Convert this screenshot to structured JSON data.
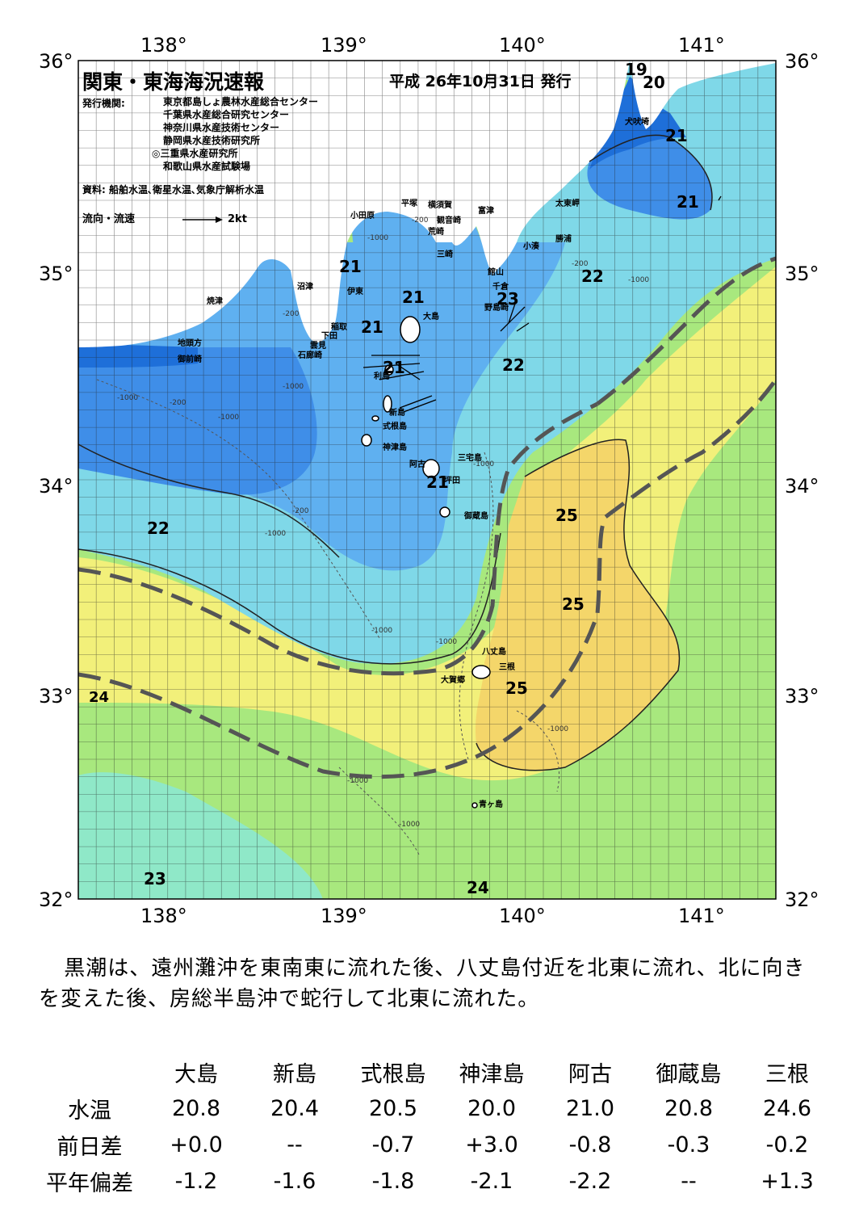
{
  "title": "関東・東海海況速報",
  "issued": "平成 26年10月31日 発行",
  "publisher_label": "発行機関:",
  "publishers": [
    "東京都島しょ農林水産総合センター",
    "千葉県水産総合研究センター",
    "神奈川県水産技術センター",
    "静岡県水産技術研究所",
    "◎三重県水産研究所",
    "和歌山県水産試験場"
  ],
  "sources": "資料: 船舶水温､衛星水温､気象庁解析水温",
  "current_legend": {
    "label": "流向・流速",
    "scale": "2kt"
  },
  "axes": {
    "lon_labels": [
      "138°",
      "139°",
      "140°",
      "141°"
    ],
    "lat_labels": [
      "36°",
      "35°",
      "34°",
      "33°",
      "32°"
    ]
  },
  "places": [
    {
      "name": "小田原"
    },
    {
      "name": "平塚"
    },
    {
      "name": "横須賀"
    },
    {
      "name": "観音崎"
    },
    {
      "name": "荒崎"
    },
    {
      "name": "富津"
    },
    {
      "name": "三崎"
    },
    {
      "name": "館山"
    },
    {
      "name": "千倉"
    },
    {
      "name": "野島崎"
    },
    {
      "name": "小湊"
    },
    {
      "name": "勝浦"
    },
    {
      "name": "太東岬"
    },
    {
      "name": "犬吠埼"
    },
    {
      "name": "沼津"
    },
    {
      "name": "伊東"
    },
    {
      "name": "焼津"
    },
    {
      "name": "稲取"
    },
    {
      "name": "下田"
    },
    {
      "name": "雲見"
    },
    {
      "name": "石廊崎"
    },
    {
      "name": "地頭方"
    },
    {
      "name": "御前崎"
    },
    {
      "name": "大島"
    },
    {
      "name": "利島"
    },
    {
      "name": "新島"
    },
    {
      "name": "式根島"
    },
    {
      "name": "神津島"
    },
    {
      "name": "三宅島"
    },
    {
      "name": "阿古"
    },
    {
      "name": "坪田"
    },
    {
      "name": "御蔵島"
    },
    {
      "name": "八丈島"
    },
    {
      "name": "三根"
    },
    {
      "name": "大賀郷"
    },
    {
      "name": "青ヶ島"
    }
  ],
  "isotherm_labels": [
    "19",
    "20",
    "21",
    "21",
    "21",
    "21",
    "21",
    "21",
    "21",
    "22",
    "22",
    "22",
    "23",
    "22",
    "25",
    "25",
    "25",
    "24",
    "23",
    "24"
  ],
  "depth_labels": [
    "-200",
    "-1000",
    "-200",
    "-1000",
    "-200",
    "-1000",
    "-200",
    "-1000",
    "-1000",
    "-200",
    "-1000",
    "-1000",
    "-1000",
    "-1000",
    "-1000",
    "-1000",
    "-1000"
  ],
  "colors": {
    "t19": "#1e6fd9",
    "t20": "#3f8ee8",
    "t21": "#5fb0f0",
    "t22": "#7fd8e8",
    "t23": "#8fe8c8",
    "t24_green": "#a8e87e",
    "t24": "#f2f07a",
    "t25": "#f4d66a",
    "kuroshio": "#555555",
    "land": "#ffffff"
  },
  "summary": "黒潮は、遠州灘沖を東南東に流れた後、八丈島付近を北東に流れ、北に向きを変えた後、房総半島沖で蛇行して北東に流れた。",
  "table": {
    "columns": [
      "大島",
      "新島",
      "式根島",
      "神津島",
      "阿古",
      "御蔵島",
      "三根"
    ],
    "rows": [
      {
        "label": "水温",
        "values": [
          "20.8",
          "20.4",
          "20.5",
          "20.0",
          "21.0",
          "20.8",
          "24.6"
        ]
      },
      {
        "label": "前日差",
        "values": [
          "+0.0",
          "--",
          "-0.7",
          "+3.0",
          "-0.8",
          "-0.3",
          "-0.2"
        ]
      },
      {
        "label": "平年偏差",
        "values": [
          "-1.2",
          "-1.6",
          "-1.8",
          "-2.1",
          "-2.2",
          "--",
          "+1.3"
        ]
      }
    ]
  }
}
